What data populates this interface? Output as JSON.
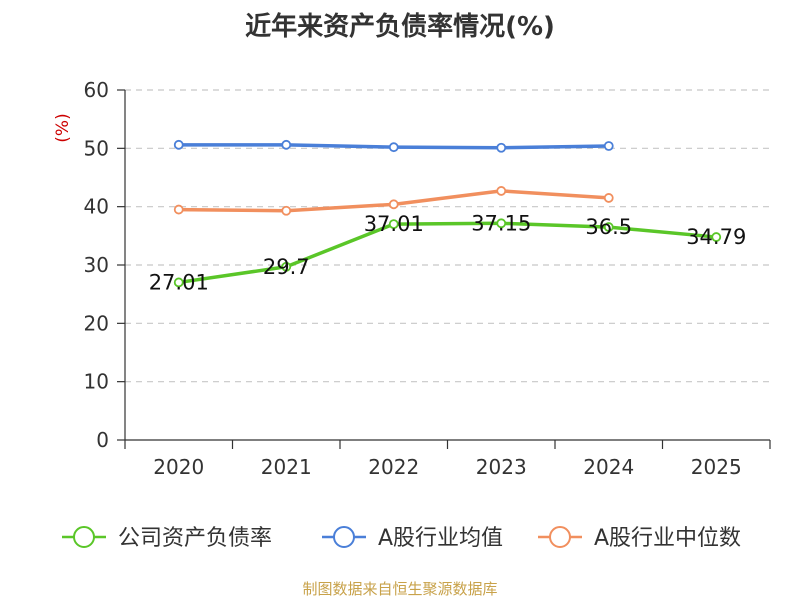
{
  "chart_data": {
    "type": "line",
    "title": "近年来资产负债率情况(%)",
    "ylabel": "(%)",
    "xlabel": "",
    "categories": [
      "2020",
      "2021",
      "2022",
      "2023",
      "2024",
      "2025"
    ],
    "ylim": [
      0,
      60
    ],
    "yticks": [
      0,
      10,
      20,
      30,
      40,
      50,
      60
    ],
    "grid": true,
    "legend_position": "bottom",
    "series": [
      {
        "name": "公司资产负债率",
        "color": "#5ac628",
        "values": [
          27.01,
          29.7,
          37.01,
          37.15,
          36.5,
          34.79
        ],
        "labels": [
          "27.01",
          "29.7",
          "37.01",
          "37.15",
          "36.5",
          "34.79"
        ]
      },
      {
        "name": "A股行业均值",
        "color": "#4a7fd8",
        "values": [
          50.6,
          50.6,
          50.2,
          50.1,
          50.4,
          null
        ]
      },
      {
        "name": "A股行业中位数",
        "color": "#f18f5e",
        "values": [
          39.5,
          39.3,
          40.4,
          42.7,
          41.5,
          null
        ]
      }
    ],
    "source": "制图数据来自恒生聚源数据库"
  }
}
